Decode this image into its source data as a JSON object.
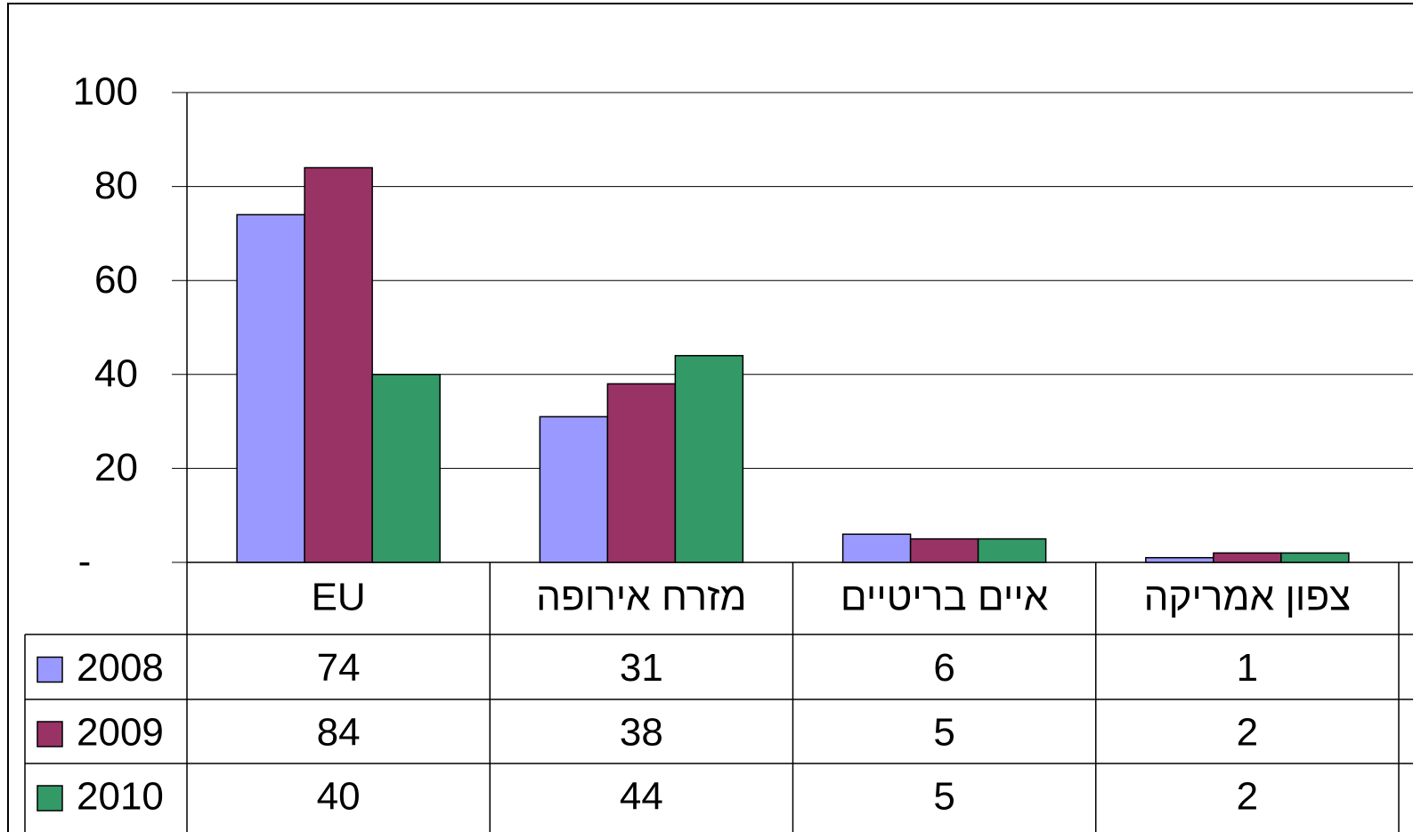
{
  "chart_data": {
    "type": "bar",
    "categories": [
      "EU",
      "מזרח אירופה",
      "איים בריטיים",
      "צפון אמריקה"
    ],
    "series": [
      {
        "name": "2008",
        "color": "#9999ff",
        "values": [
          74,
          31,
          6,
          1
        ]
      },
      {
        "name": "2009",
        "color": "#993366",
        "values": [
          84,
          38,
          5,
          2
        ]
      },
      {
        "name": "2010",
        "color": "#339966",
        "values": [
          40,
          44,
          5,
          2
        ]
      }
    ],
    "ylim": [
      0,
      100
    ],
    "yticks": [
      {
        "value": 0,
        "label": "-"
      },
      20,
      40,
      60,
      80,
      100
    ],
    "grid": true
  }
}
